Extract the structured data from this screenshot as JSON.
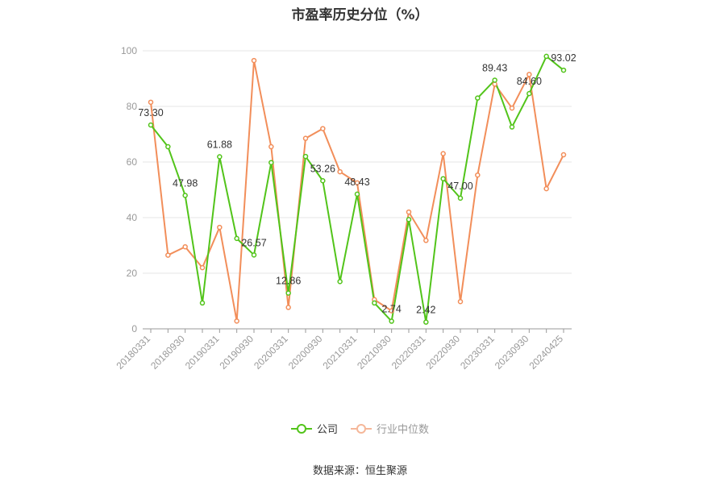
{
  "chart_data": {
    "type": "line",
    "title": "市盈率历史分位（%）",
    "source": "数据来源：恒生聚源",
    "ylim": [
      0,
      100
    ],
    "yticks": [
      0,
      20,
      40,
      60,
      80,
      100
    ],
    "grid": true,
    "legend_position": "bottom",
    "x_tick_labels": [
      "20180331",
      "20180930",
      "20190331",
      "20190930",
      "20200331",
      "20200930",
      "20210331",
      "20210930",
      "20220331",
      "20220930",
      "20230331",
      "20230930",
      "20240425"
    ],
    "x": [
      "20180331",
      "20180630",
      "20180930",
      "20181231",
      "20190331",
      "20190630",
      "20190930",
      "20191231",
      "20200331",
      "20200630",
      "20200930",
      "20201231",
      "20210331",
      "20210630",
      "20210930",
      "20211231",
      "20220331",
      "20220630",
      "20220930",
      "20221231",
      "20230331",
      "20230630",
      "20230930",
      "20231231",
      "20240425"
    ],
    "series": [
      {
        "name": "公司",
        "color": "#52c41a",
        "values": [
          73.3,
          65.5,
          47.98,
          9.3,
          61.88,
          32.5,
          26.57,
          59.8,
          12.86,
          62.0,
          53.26,
          17.0,
          48.43,
          9.3,
          2.74,
          39.3,
          2.42,
          54.0,
          47.0,
          83.0,
          89.43,
          72.6,
          84.6,
          98.0,
          93.02
        ],
        "labels": {
          "0": "73.30",
          "2": "47.98",
          "4": "61.88",
          "6": "26.57",
          "8": "12.86",
          "10": "53.26",
          "12": "48.43",
          "14": "2.74",
          "16": "2.42",
          "18": "47.00",
          "20": "89.43",
          "22": "84.60",
          "24": "93.02"
        }
      },
      {
        "name": "行业中位数",
        "color": "#f28e5a",
        "values": [
          81.5,
          26.5,
          29.5,
          22.0,
          36.5,
          2.8,
          96.5,
          65.5,
          7.7,
          68.5,
          72.0,
          56.5,
          52.5,
          10.5,
          6.5,
          42.0,
          31.8,
          63.0,
          9.8,
          55.3,
          88.0,
          79.4,
          91.5,
          50.4,
          62.6
        ]
      }
    ]
  }
}
